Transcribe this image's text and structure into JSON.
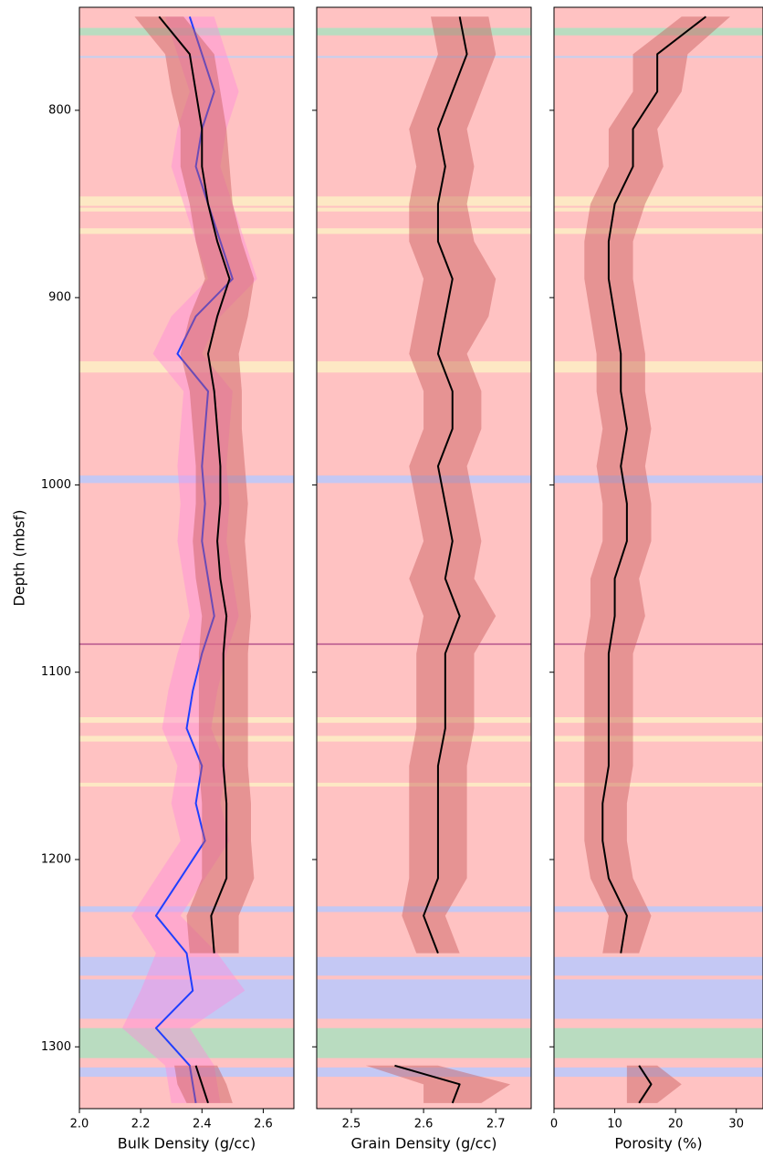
{
  "chart_data": [
    {
      "type": "line",
      "xlabel": "Bulk Density (g/cc)",
      "ylabel": "Depth (mbsf)",
      "show_yticklabels": true,
      "xlim": [
        2.0,
        2.7
      ],
      "ylim": [
        745,
        1333
      ],
      "y_inverted": true,
      "xticks": [
        {
          "value": 2.0,
          "label": "2.0"
        },
        2.2,
        2.4,
        2.6
      ],
      "yticks": [
        800,
        900,
        1000,
        1100,
        1200,
        1300
      ],
      "background": "#ffc2c2",
      "bands": [
        {
          "from": 756,
          "to": 760,
          "color": "#b9dcc0"
        },
        {
          "from": 771,
          "to": 772,
          "color": "#c4d0f0"
        },
        {
          "from": 846,
          "to": 851,
          "color": "#fde8c4"
        },
        {
          "from": 852,
          "to": 854,
          "color": "#fde8c4"
        },
        {
          "from": 863,
          "to": 866,
          "color": "#fde8c4"
        },
        {
          "from": 934,
          "to": 940,
          "color": "#fde8c4"
        },
        {
          "from": 995,
          "to": 999,
          "color": "#c4c8f4"
        },
        {
          "from": 1084.5,
          "to": 1085.5,
          "color": "#c8709a"
        },
        {
          "from": 1124,
          "to": 1127,
          "color": "#fde8c4"
        },
        {
          "from": 1134,
          "to": 1137,
          "color": "#fde8c4"
        },
        {
          "from": 1159,
          "to": 1161,
          "color": "#fde8c4"
        },
        {
          "from": 1225,
          "to": 1228,
          "color": "#c4c8f4"
        },
        {
          "from": 1252,
          "to": 1262,
          "color": "#c4c8f4"
        },
        {
          "from": 1264,
          "to": 1285,
          "color": "#c4c8f4"
        },
        {
          "from": 1290,
          "to": 1306,
          "color": "#b9dcc0"
        },
        {
          "from": 1311,
          "to": 1316,
          "color": "#c4c8f4"
        }
      ],
      "series": [
        {
          "color": "#1f3fff",
          "fill": "rgba(255,140,220,0.45)",
          "y": [
            750,
            770,
            790,
            810,
            830,
            850,
            870,
            890,
            910,
            930,
            950,
            970,
            990,
            1010,
            1030,
            1050,
            1070,
            1090,
            1110,
            1130,
            1150,
            1170,
            1190,
            1210,
            1230,
            1250,
            1270,
            1290,
            1310,
            1330
          ],
          "values": [
            2.36,
            2.4,
            2.44,
            2.4,
            2.38,
            2.42,
            2.46,
            2.5,
            2.38,
            2.32,
            2.42,
            2.41,
            2.4,
            2.41,
            2.4,
            2.42,
            2.44,
            2.4,
            2.37,
            2.35,
            2.4,
            2.38,
            2.41,
            2.33,
            2.25,
            2.35,
            2.37,
            2.25,
            2.36,
            2.38
          ],
          "lower": [
            2.28,
            2.32,
            2.36,
            2.32,
            2.3,
            2.34,
            2.38,
            2.42,
            2.3,
            2.24,
            2.34,
            2.33,
            2.32,
            2.33,
            2.32,
            2.34,
            2.36,
            2.32,
            2.29,
            2.27,
            2.32,
            2.3,
            2.33,
            2.25,
            2.17,
            2.25,
            2.2,
            2.14,
            2.28,
            2.3
          ],
          "upper": [
            2.44,
            2.48,
            2.52,
            2.48,
            2.46,
            2.5,
            2.54,
            2.58,
            2.46,
            2.4,
            2.5,
            2.49,
            2.48,
            2.49,
            2.48,
            2.5,
            2.52,
            2.48,
            2.45,
            2.43,
            2.48,
            2.46,
            2.49,
            2.41,
            2.33,
            2.45,
            2.54,
            2.36,
            2.44,
            2.46
          ]
        },
        {
          "color": "#000000",
          "fill": "rgba(200,90,90,0.45)",
          "y": [
            750,
            770,
            790,
            810,
            830,
            850,
            870,
            890,
            910,
            930,
            950,
            970,
            990,
            1010,
            1030,
            1050,
            1070,
            1090,
            1110,
            1130,
            1150,
            1170,
            1190,
            1210,
            1230,
            1250,
            1280,
            1310,
            1320,
            1330
          ],
          "values": [
            2.26,
            2.36,
            2.38,
            2.4,
            2.4,
            2.42,
            2.45,
            2.49,
            2.45,
            2.42,
            2.44,
            2.45,
            2.46,
            2.46,
            2.45,
            2.46,
            2.48,
            2.47,
            2.47,
            2.47,
            2.47,
            2.48,
            2.48,
            2.48,
            2.43,
            2.44,
            null,
            2.38,
            2.4,
            2.42
          ],
          "lower": [
            2.18,
            2.28,
            2.3,
            2.33,
            2.33,
            2.36,
            2.38,
            2.41,
            2.36,
            2.33,
            2.36,
            2.37,
            2.38,
            2.38,
            2.37,
            2.38,
            2.4,
            2.39,
            2.39,
            2.39,
            2.39,
            2.4,
            2.4,
            2.4,
            2.35,
            2.36,
            null,
            2.31,
            2.32,
            2.35
          ],
          "upper": [
            2.34,
            2.44,
            2.46,
            2.48,
            2.49,
            2.5,
            2.53,
            2.57,
            2.55,
            2.52,
            2.53,
            2.53,
            2.54,
            2.55,
            2.54,
            2.55,
            2.56,
            2.55,
            2.55,
            2.55,
            2.55,
            2.56,
            2.56,
            2.57,
            2.52,
            2.52,
            null,
            2.45,
            2.48,
            2.5
          ]
        }
      ]
    },
    {
      "type": "line",
      "xlabel": "Grain Density (g/cc)",
      "show_yticklabels": false,
      "xlim": [
        2.452,
        2.749
      ],
      "ylim": [
        745,
        1333
      ],
      "y_inverted": true,
      "xticks": [
        2.5,
        2.6,
        2.7
      ],
      "yticks": [
        800,
        900,
        1000,
        1100,
        1200,
        1300
      ],
      "series": [
        {
          "color": "#000000",
          "fill": "rgba(200,90,90,0.45)",
          "y": [
            750,
            770,
            790,
            810,
            830,
            850,
            870,
            890,
            910,
            930,
            950,
            970,
            990,
            1010,
            1030,
            1050,
            1070,
            1090,
            1110,
            1130,
            1150,
            1170,
            1190,
            1210,
            1230,
            1250,
            1280,
            1310,
            1320,
            1330
          ],
          "values": [
            2.65,
            2.66,
            2.64,
            2.62,
            2.63,
            2.62,
            2.62,
            2.64,
            2.63,
            2.62,
            2.64,
            2.64,
            2.62,
            2.63,
            2.64,
            2.63,
            2.65,
            2.63,
            2.63,
            2.63,
            2.62,
            2.62,
            2.62,
            2.62,
            2.6,
            2.62,
            null,
            2.56,
            2.65,
            2.64
          ],
          "lower": [
            2.61,
            2.62,
            2.6,
            2.58,
            2.59,
            2.58,
            2.58,
            2.6,
            2.59,
            2.58,
            2.6,
            2.6,
            2.58,
            2.59,
            2.6,
            2.58,
            2.6,
            2.59,
            2.59,
            2.59,
            2.58,
            2.58,
            2.58,
            2.58,
            2.57,
            2.59,
            null,
            2.52,
            2.6,
            2.6
          ],
          "upper": [
            2.69,
            2.7,
            2.68,
            2.66,
            2.67,
            2.66,
            2.67,
            2.7,
            2.69,
            2.66,
            2.68,
            2.68,
            2.66,
            2.67,
            2.68,
            2.67,
            2.7,
            2.67,
            2.67,
            2.67,
            2.66,
            2.66,
            2.66,
            2.66,
            2.63,
            2.65,
            null,
            2.62,
            2.72,
            2.68
          ]
        }
      ]
    },
    {
      "type": "line",
      "xlabel": "Porosity (%)",
      "show_yticklabels": false,
      "xlim": [
        0,
        34.4
      ],
      "ylim": [
        745,
        1333
      ],
      "y_inverted": true,
      "xticks": [
        0,
        10,
        20,
        30
      ],
      "yticks": [
        800,
        900,
        1000,
        1100,
        1200,
        1300
      ],
      "series": [
        {
          "color": "#000000",
          "fill": "rgba(200,90,90,0.45)",
          "y": [
            750,
            770,
            790,
            810,
            830,
            850,
            870,
            890,
            910,
            930,
            950,
            970,
            990,
            1010,
            1030,
            1050,
            1070,
            1090,
            1110,
            1130,
            1150,
            1170,
            1190,
            1210,
            1230,
            1250,
            1280,
            1310,
            1320,
            1330
          ],
          "values": [
            25,
            17,
            17,
            13,
            13,
            10,
            9,
            9,
            10,
            11,
            11,
            12,
            11,
            12,
            12,
            10,
            10,
            9,
            9,
            9,
            9,
            8,
            8,
            9,
            12,
            11,
            null,
            14,
            16,
            14
          ],
          "lower": [
            21,
            13,
            13,
            9,
            9,
            6,
            5,
            5,
            6,
            7,
            7,
            8,
            7,
            8,
            8,
            6,
            6,
            5,
            5,
            5,
            5,
            5,
            5,
            6,
            9,
            8,
            null,
            12,
            12,
            12
          ],
          "upper": [
            29,
            22,
            21,
            17,
            18,
            15,
            13,
            13,
            14,
            15,
            15,
            16,
            15,
            16,
            16,
            14,
            15,
            13,
            13,
            13,
            13,
            12,
            12,
            13,
            16,
            14,
            null,
            17,
            21,
            17
          ]
        }
      ]
    }
  ]
}
